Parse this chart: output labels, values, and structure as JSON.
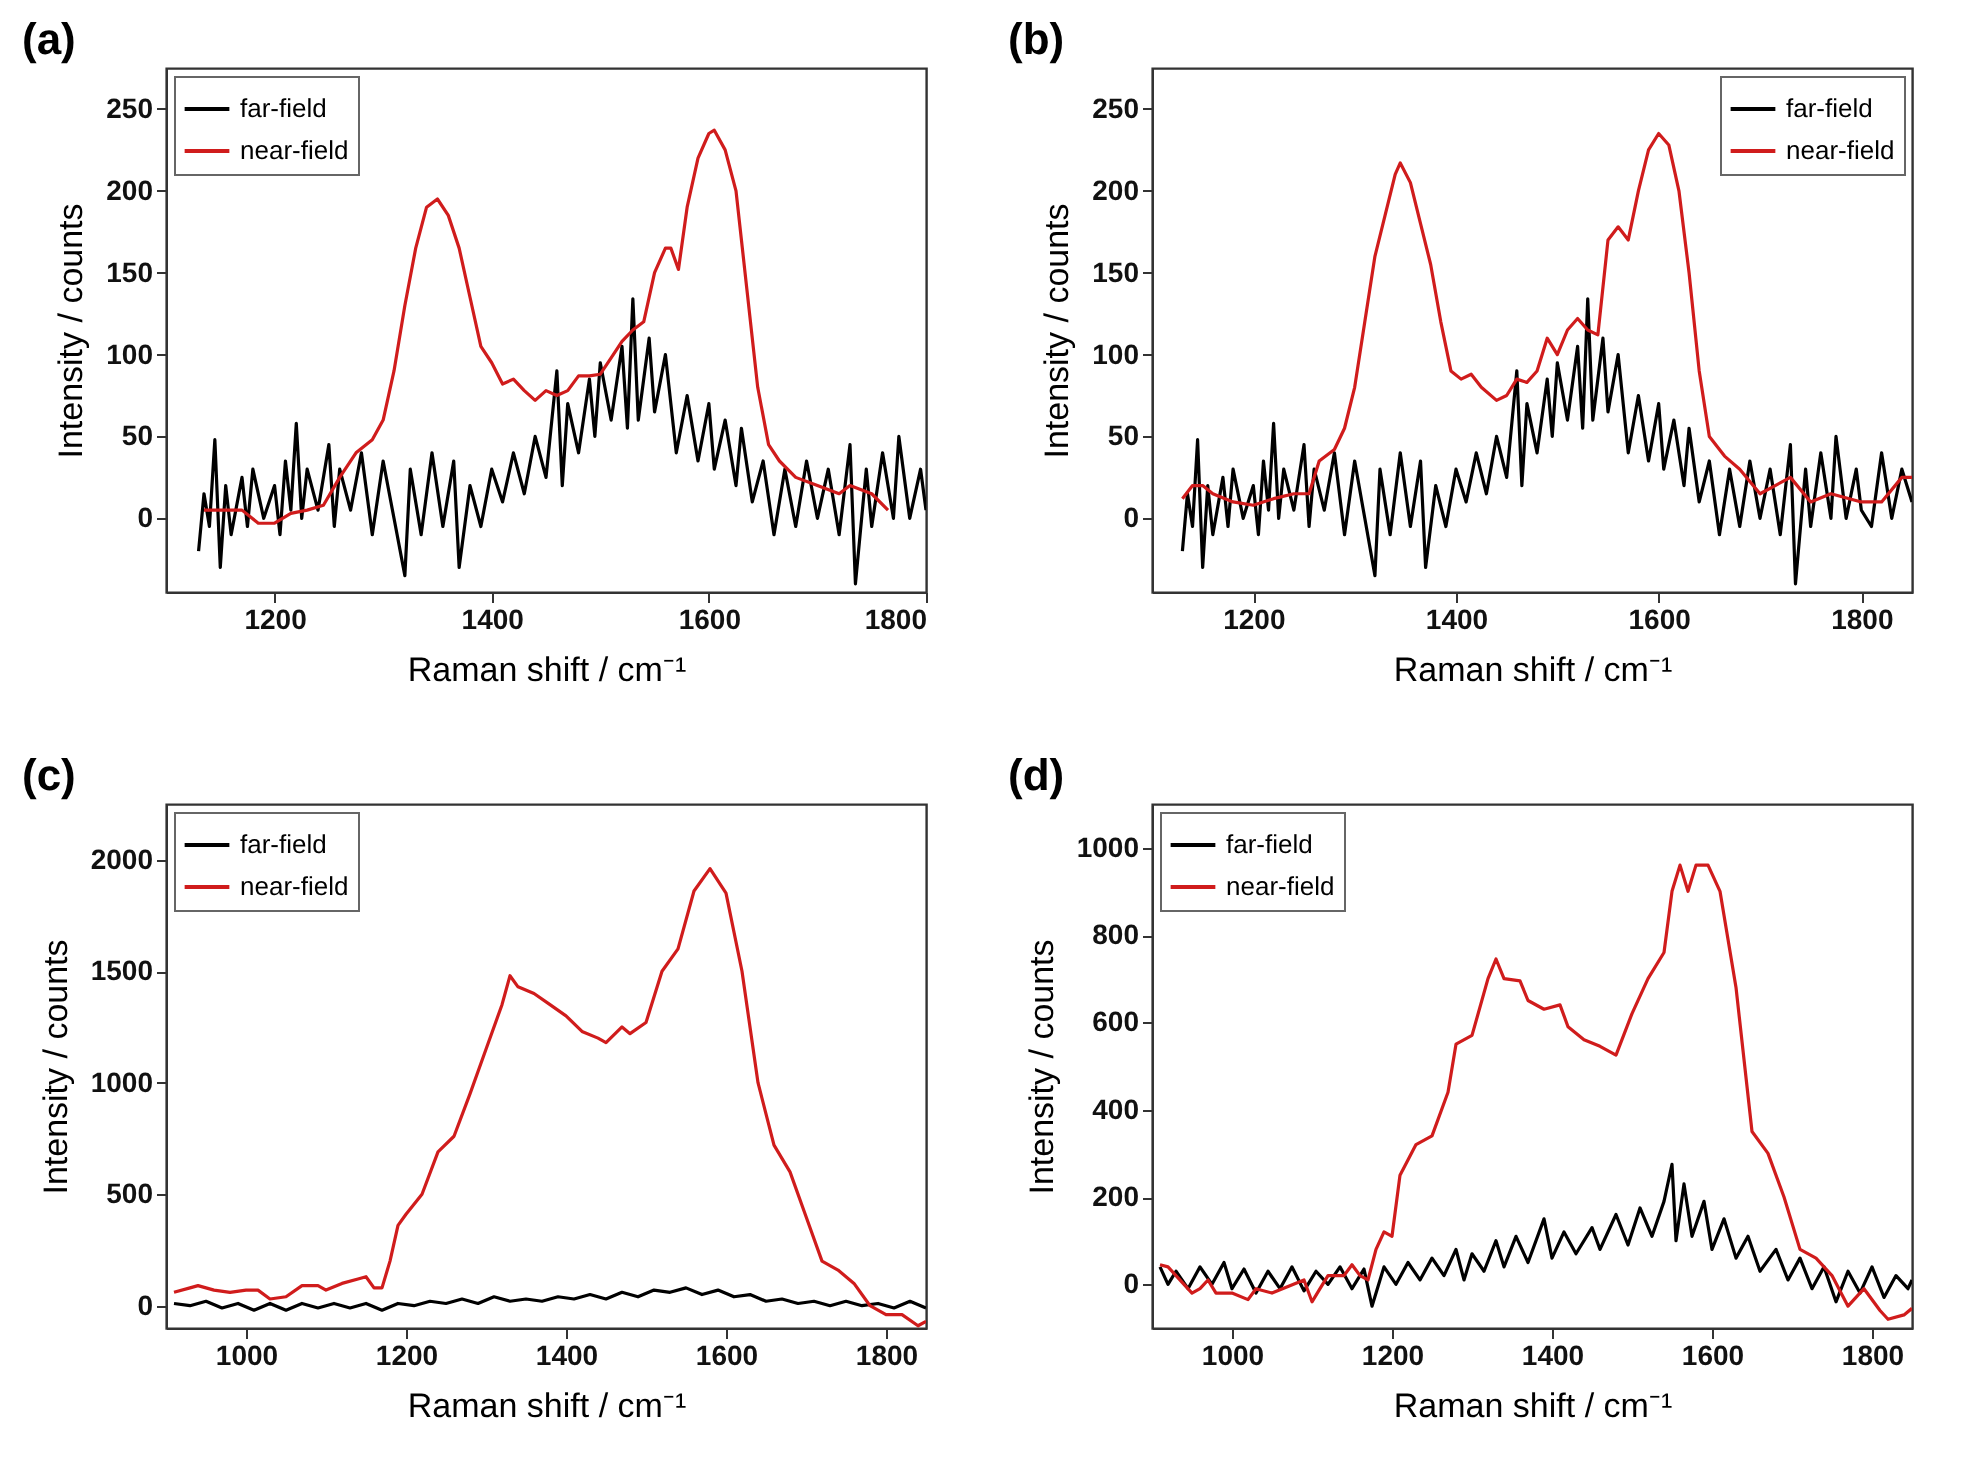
{
  "chart_data": [
    {
      "type": "line",
      "title": "(a)",
      "xlabel": "Raman shift / cm⁻¹",
      "ylabel": "Intensity / counts",
      "xlim": [
        1100,
        1800
      ],
      "ylim": [
        -45,
        275
      ],
      "xticks": [
        1200,
        1400,
        1600,
        1800
      ],
      "yticks": [
        0,
        50,
        100,
        150,
        200,
        250
      ],
      "legend": "top left",
      "series": [
        {
          "name": "far-field",
          "color": "#000000",
          "x": [
            1130,
            1135,
            1140,
            1145,
            1150,
            1155,
            1160,
            1170,
            1175,
            1180,
            1190,
            1200,
            1205,
            1210,
            1215,
            1220,
            1225,
            1230,
            1240,
            1250,
            1255,
            1260,
            1270,
            1280,
            1290,
            1300,
            1310,
            1320,
            1325,
            1335,
            1345,
            1355,
            1365,
            1370,
            1380,
            1390,
            1400,
            1410,
            1420,
            1430,
            1440,
            1450,
            1460,
            1465,
            1470,
            1480,
            1490,
            1495,
            1500,
            1510,
            1520,
            1525,
            1530,
            1535,
            1545,
            1550,
            1560,
            1570,
            1580,
            1590,
            1600,
            1605,
            1615,
            1625,
            1630,
            1640,
            1650,
            1660,
            1670,
            1680,
            1690,
            1700,
            1710,
            1720,
            1730,
            1735,
            1745,
            1750,
            1760,
            1770,
            1775,
            1785,
            1795,
            1800
          ],
          "values": [
            -20,
            15,
            -5,
            48,
            -30,
            20,
            -10,
            25,
            -5,
            30,
            0,
            20,
            -10,
            35,
            5,
            58,
            0,
            30,
            5,
            45,
            -5,
            30,
            5,
            40,
            -10,
            35,
            0,
            -35,
            30,
            -10,
            40,
            -5,
            35,
            -30,
            20,
            -5,
            30,
            10,
            40,
            15,
            50,
            25,
            90,
            20,
            70,
            40,
            85,
            50,
            95,
            60,
            105,
            55,
            134,
            60,
            110,
            65,
            100,
            40,
            75,
            35,
            70,
            30,
            60,
            20,
            55,
            10,
            35,
            -10,
            30,
            -5,
            35,
            0,
            30,
            -10,
            45,
            -40,
            30,
            -5,
            40,
            0,
            50,
            0,
            30,
            5
          ]
        },
        {
          "name": "near-field",
          "color": "#d01c1c",
          "x": [
            1135,
            1150,
            1170,
            1185,
            1200,
            1215,
            1230,
            1245,
            1260,
            1275,
            1290,
            1300,
            1310,
            1320,
            1330,
            1340,
            1350,
            1360,
            1370,
            1380,
            1390,
            1400,
            1410,
            1420,
            1430,
            1440,
            1450,
            1460,
            1470,
            1480,
            1490,
            1500,
            1510,
            1520,
            1530,
            1540,
            1550,
            1560,
            1565,
            1572,
            1580,
            1590,
            1600,
            1605,
            1615,
            1625,
            1635,
            1645,
            1655,
            1665,
            1680,
            1700,
            1720,
            1730,
            1750,
            1765
          ],
          "values": [
            5,
            5,
            5,
            -3,
            -3,
            3,
            5,
            8,
            25,
            40,
            48,
            60,
            90,
            130,
            165,
            190,
            195,
            185,
            165,
            135,
            105,
            95,
            82,
            85,
            78,
            72,
            78,
            75,
            78,
            87,
            87,
            88,
            98,
            108,
            115,
            120,
            150,
            165,
            165,
            152,
            190,
            220,
            235,
            237,
            225,
            200,
            140,
            80,
            45,
            35,
            25,
            20,
            15,
            20,
            15,
            5
          ]
        }
      ]
    },
    {
      "type": "line",
      "title": "(b)",
      "xlabel": "Raman shift / cm⁻¹",
      "ylabel": "Intensity / counts",
      "xlim": [
        1100,
        1850
      ],
      "ylim": [
        -45,
        275
      ],
      "xticks": [
        1200,
        1400,
        1600,
        1800
      ],
      "yticks": [
        0,
        50,
        100,
        150,
        200,
        250
      ],
      "legend": "top right",
      "series": [
        {
          "name": "far-field",
          "color": "#000000",
          "x": [
            1130,
            1135,
            1140,
            1145,
            1150,
            1155,
            1160,
            1170,
            1175,
            1180,
            1190,
            1200,
            1205,
            1210,
            1215,
            1220,
            1225,
            1230,
            1240,
            1250,
            1255,
            1260,
            1270,
            1280,
            1290,
            1300,
            1310,
            1320,
            1325,
            1335,
            1345,
            1355,
            1365,
            1370,
            1380,
            1390,
            1400,
            1410,
            1420,
            1430,
            1440,
            1450,
            1460,
            1465,
            1470,
            1480,
            1490,
            1495,
            1500,
            1510,
            1520,
            1525,
            1530,
            1535,
            1545,
            1550,
            1560,
            1570,
            1580,
            1590,
            1600,
            1605,
            1615,
            1625,
            1630,
            1640,
            1650,
            1660,
            1670,
            1680,
            1690,
            1700,
            1710,
            1720,
            1730,
            1735,
            1745,
            1750,
            1760,
            1770,
            1775,
            1785,
            1795,
            1800,
            1810,
            1820,
            1830,
            1840,
            1850
          ],
          "values": [
            -20,
            15,
            -5,
            48,
            -30,
            20,
            -10,
            25,
            -5,
            30,
            0,
            20,
            -10,
            35,
            5,
            58,
            0,
            30,
            5,
            45,
            -5,
            30,
            5,
            40,
            -10,
            35,
            0,
            -35,
            30,
            -10,
            40,
            -5,
            35,
            -30,
            20,
            -5,
            30,
            10,
            40,
            15,
            50,
            25,
            90,
            20,
            70,
            40,
            85,
            50,
            95,
            60,
            105,
            55,
            134,
            60,
            110,
            65,
            100,
            40,
            75,
            35,
            70,
            30,
            60,
            20,
            55,
            10,
            35,
            -10,
            30,
            -5,
            35,
            0,
            30,
            -10,
            45,
            -40,
            30,
            -5,
            40,
            0,
            50,
            0,
            30,
            5,
            -5,
            40,
            0,
            30,
            10
          ]
        },
        {
          "name": "near-field",
          "color": "#d01c1c",
          "x": [
            1130,
            1140,
            1150,
            1160,
            1180,
            1200,
            1220,
            1240,
            1255,
            1265,
            1280,
            1290,
            1300,
            1310,
            1320,
            1330,
            1340,
            1345,
            1355,
            1365,
            1375,
            1385,
            1395,
            1405,
            1415,
            1425,
            1440,
            1450,
            1460,
            1470,
            1480,
            1490,
            1500,
            1510,
            1520,
            1530,
            1540,
            1550,
            1560,
            1570,
            1580,
            1590,
            1600,
            1610,
            1620,
            1630,
            1640,
            1650,
            1665,
            1680,
            1700,
            1715,
            1730,
            1750,
            1770,
            1800,
            1820,
            1840,
            1850
          ],
          "values": [
            12,
            20,
            20,
            15,
            10,
            8,
            12,
            15,
            15,
            35,
            42,
            55,
            80,
            120,
            160,
            185,
            210,
            217,
            205,
            180,
            155,
            120,
            90,
            85,
            88,
            80,
            72,
            75,
            85,
            83,
            90,
            110,
            100,
            115,
            122,
            115,
            112,
            170,
            178,
            170,
            200,
            225,
            235,
            228,
            200,
            150,
            90,
            50,
            38,
            30,
            15,
            20,
            25,
            10,
            15,
            10,
            10,
            25,
            25
          ]
        }
      ]
    },
    {
      "type": "line",
      "title": "(c)",
      "xlabel": "Raman shift / cm⁻¹",
      "ylabel": "Intensity / counts",
      "xlim": [
        900,
        1850
      ],
      "ylim": [
        -100,
        2250
      ],
      "xticks": [
        1000,
        1200,
        1400,
        1600,
        1800
      ],
      "yticks": [
        0,
        500,
        1000,
        1500,
        2000
      ],
      "legend": "top left",
      "series": [
        {
          "name": "far-field",
          "color": "#000000",
          "x": [
            910,
            930,
            950,
            970,
            990,
            1010,
            1030,
            1050,
            1070,
            1090,
            1110,
            1130,
            1150,
            1170,
            1190,
            1210,
            1230,
            1250,
            1270,
            1290,
            1310,
            1330,
            1350,
            1370,
            1390,
            1410,
            1430,
            1450,
            1470,
            1490,
            1510,
            1530,
            1550,
            1570,
            1590,
            1610,
            1630,
            1650,
            1670,
            1690,
            1710,
            1730,
            1750,
            1770,
            1790,
            1810,
            1830,
            1850
          ],
          "values": [
            10,
            0,
            20,
            -10,
            10,
            -20,
            10,
            -20,
            10,
            -10,
            10,
            -10,
            10,
            -20,
            10,
            0,
            20,
            10,
            30,
            10,
            40,
            20,
            30,
            20,
            40,
            30,
            50,
            30,
            60,
            40,
            70,
            60,
            80,
            50,
            70,
            40,
            50,
            20,
            30,
            10,
            20,
            0,
            20,
            0,
            10,
            -10,
            20,
            -10
          ]
        },
        {
          "name": "near-field",
          "color": "#d01c1c",
          "x": [
            910,
            930,
            940,
            960,
            980,
            1000,
            1015,
            1030,
            1050,
            1070,
            1090,
            1100,
            1120,
            1140,
            1150,
            1160,
            1170,
            1180,
            1190,
            1200,
            1220,
            1240,
            1260,
            1280,
            1300,
            1320,
            1330,
            1340,
            1360,
            1380,
            1400,
            1420,
            1440,
            1450,
            1470,
            1480,
            1500,
            1520,
            1540,
            1560,
            1580,
            1600,
            1620,
            1640,
            1660,
            1680,
            1700,
            1720,
            1740,
            1760,
            1780,
            1800,
            1820,
            1840,
            1850
          ],
          "values": [
            60,
            80,
            90,
            70,
            60,
            70,
            70,
            30,
            40,
            90,
            90,
            70,
            100,
            120,
            130,
            80,
            80,
            200,
            360,
            410,
            500,
            690,
            760,
            950,
            1150,
            1350,
            1480,
            1430,
            1400,
            1350,
            1300,
            1230,
            1200,
            1180,
            1250,
            1220,
            1270,
            1500,
            1600,
            1860,
            1960,
            1850,
            1500,
            1000,
            720,
            600,
            400,
            200,
            160,
            100,
            0,
            -40,
            -40,
            -90,
            -70
          ]
        }
      ]
    },
    {
      "type": "line",
      "title": "(d)",
      "xlabel": "Raman shift / cm⁻¹",
      "ylabel": "Intensity / counts",
      "xlim": [
        900,
        1850
      ],
      "ylim": [
        -100,
        1100
      ],
      "xticks": [
        1000,
        1200,
        1400,
        1600,
        1800
      ],
      "yticks": [
        0,
        200,
        400,
        600,
        800,
        1000
      ],
      "legend": "top left",
      "series": [
        {
          "name": "far-field",
          "color": "#000000",
          "x": [
            910,
            920,
            930,
            945,
            960,
            975,
            990,
            1000,
            1015,
            1030,
            1045,
            1060,
            1075,
            1090,
            1105,
            1120,
            1135,
            1150,
            1165,
            1175,
            1190,
            1205,
            1220,
            1235,
            1250,
            1265,
            1280,
            1290,
            1300,
            1315,
            1330,
            1340,
            1355,
            1370,
            1390,
            1400,
            1415,
            1430,
            1450,
            1460,
            1480,
            1495,
            1510,
            1525,
            1540,
            1550,
            1555,
            1565,
            1575,
            1590,
            1600,
            1615,
            1630,
            1645,
            1660,
            1680,
            1695,
            1710,
            1725,
            1740,
            1755,
            1770,
            1785,
            1800,
            1815,
            1830,
            1845,
            1850
          ],
          "values": [
            40,
            0,
            30,
            -10,
            40,
            0,
            50,
            -10,
            35,
            -20,
            30,
            -10,
            40,
            -15,
            30,
            0,
            40,
            -10,
            35,
            -50,
            40,
            0,
            50,
            10,
            60,
            20,
            80,
            10,
            70,
            30,
            100,
            40,
            110,
            50,
            150,
            60,
            120,
            70,
            130,
            80,
            160,
            90,
            175,
            110,
            190,
            275,
            100,
            230,
            110,
            190,
            80,
            150,
            60,
            110,
            30,
            80,
            10,
            60,
            -10,
            40,
            -40,
            30,
            -20,
            40,
            -30,
            20,
            -10,
            10
          ]
        },
        {
          "name": "near-field",
          "color": "#d01c1c",
          "x": [
            910,
            920,
            930,
            940,
            950,
            960,
            970,
            980,
            1000,
            1020,
            1030,
            1050,
            1070,
            1090,
            1100,
            1110,
            1120,
            1140,
            1150,
            1160,
            1170,
            1180,
            1190,
            1200,
            1210,
            1230,
            1250,
            1270,
            1280,
            1300,
            1320,
            1330,
            1340,
            1360,
            1370,
            1390,
            1410,
            1420,
            1440,
            1460,
            1480,
            1500,
            1520,
            1540,
            1550,
            1560,
            1570,
            1580,
            1595,
            1610,
            1630,
            1650,
            1670,
            1690,
            1710,
            1730,
            1750,
            1770,
            1790,
            1810,
            1820,
            1840,
            1850
          ],
          "values": [
            45,
            40,
            20,
            0,
            -20,
            -10,
            10,
            -20,
            -20,
            -35,
            -10,
            -20,
            -5,
            10,
            -40,
            -10,
            20,
            20,
            45,
            20,
            10,
            80,
            120,
            110,
            250,
            320,
            340,
            440,
            550,
            570,
            700,
            745,
            700,
            695,
            650,
            630,
            640,
            590,
            560,
            545,
            525,
            620,
            700,
            760,
            900,
            960,
            900,
            960,
            960,
            900,
            680,
            350,
            300,
            200,
            80,
            60,
            20,
            -50,
            -10,
            -60,
            -80,
            -70,
            -55
          ]
        }
      ]
    }
  ]
}
